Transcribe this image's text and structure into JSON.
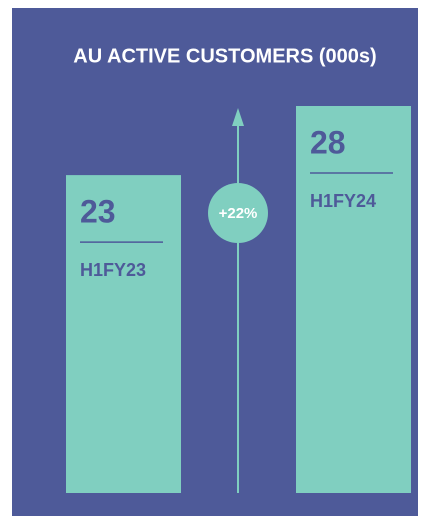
{
  "chart_data": {
    "type": "bar",
    "title": "AU ACTIVE CUSTOMERS (000s)",
    "categories": [
      "H1FY23",
      "H1FY24"
    ],
    "values": [
      23,
      28
    ],
    "color": "#80cfc0",
    "annotation": "+22%"
  }
}
